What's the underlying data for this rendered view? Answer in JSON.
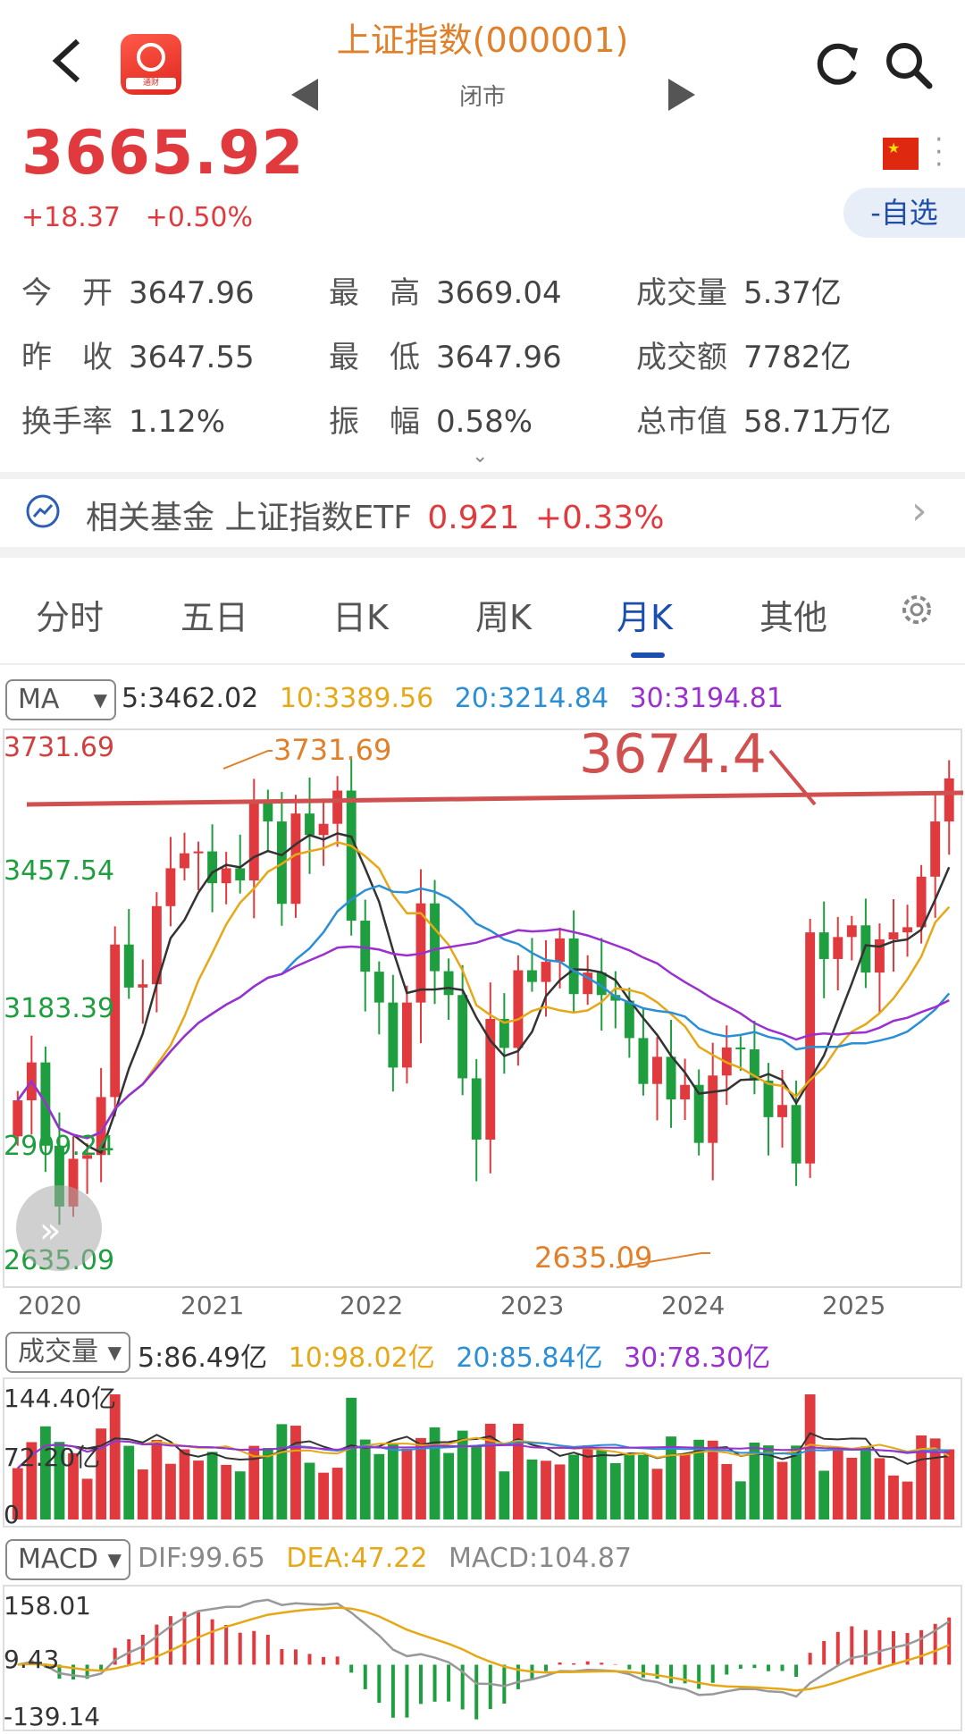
{
  "header": {
    "back": "‹",
    "title": "上证指数(000001)",
    "status": "闭市",
    "logo_text": "通财"
  },
  "quote": {
    "price": "3665.92",
    "change": "+18.37",
    "change_pct": "+0.50%",
    "watch_button": "-自选",
    "stats": [
      {
        "label": "今　开",
        "value": "3647.96"
      },
      {
        "label": "最　高",
        "value": "3669.04"
      },
      {
        "label": "成交量",
        "value": "5.37亿"
      },
      {
        "label": "昨　收",
        "value": "3647.55"
      },
      {
        "label": "最　低",
        "value": "3647.96"
      },
      {
        "label": "成交额",
        "value": "7782亿"
      },
      {
        "label": "换手率",
        "value": "1.12%"
      },
      {
        "label": "振　幅",
        "value": "0.58%"
      },
      {
        "label": "总市值",
        "value": "58.71万亿"
      }
    ]
  },
  "fund": {
    "label": "相关基金",
    "name": "上证指数ETF",
    "price": "0.921",
    "change": "+0.33%"
  },
  "tabs": [
    "分时",
    "五日",
    "日K",
    "周K",
    "月K",
    "其他"
  ],
  "active_tab": "月K",
  "ma_bar": {
    "selector": "MA",
    "ma5": "5:3462.02",
    "ma10": "10:3389.56",
    "ma20": "20:3214.84",
    "ma30": "30:3194.81"
  },
  "volume_bar": {
    "selector": "成交量",
    "ma5": "5:86.49亿",
    "ma10": "10:98.02亿",
    "ma20": "20:85.84亿",
    "ma30": "30:78.30亿"
  },
  "macd_bar": {
    "selector": "MACD",
    "dif": "DIF:99.65",
    "dea": "DEA:47.22",
    "macd": "MACD:104.87"
  },
  "colors": {
    "up": "#e03a3e",
    "down": "#1e9e3e",
    "ma5": "#333333",
    "ma10": "#e6a817",
    "ma20": "#2b8fd6",
    "ma30": "#9b2fcf",
    "annotation": "#d05050"
  },
  "chart_data": [
    {
      "type": "candlestick",
      "title": "",
      "y_ticks": [
        "3731.69",
        "3457.54",
        "3183.39",
        "2909.24",
        "2635.09"
      ],
      "ylim": [
        2635.09,
        3731.69
      ],
      "x_ticks": [
        "2020",
        "2021",
        "2022",
        "2023",
        "2024",
        "2025"
      ],
      "annotations": {
        "high": "3731.69",
        "low": "2635.09",
        "resistance": "3674.4"
      },
      "series": [
        {
          "name": "MA5",
          "values": []
        },
        {
          "name": "MA10",
          "values": []
        },
        {
          "name": "MA20",
          "values": []
        },
        {
          "name": "MA30",
          "values": []
        }
      ],
      "closes": [
        2977,
        3058,
        2880,
        2750,
        2852,
        2860,
        2984,
        3310,
        3218,
        3225,
        3392,
        3473,
        3505,
        3509,
        3441,
        3473,
        3447,
        3615,
        3573,
        3397,
        3590,
        3544,
        3568,
        3639,
        3361,
        3252,
        3186,
        3047,
        3186,
        3398,
        3253,
        3202,
        3024,
        2893,
        3151,
        3089,
        3255,
        3230,
        3273,
        3323,
        3204,
        3250,
        3202,
        3190,
        3110,
        3012,
        3070,
        2979,
        3010,
        2886,
        3030,
        3090,
        3086,
        3019,
        2941,
        2967,
        2842,
        3336,
        3279,
        3326,
        3351,
        3250,
        3321,
        3336,
        3347,
        3455,
        3573,
        3665
      ]
    },
    {
      "type": "bar",
      "title": "",
      "y_ticks": [
        "144.40亿",
        "72.20亿",
        "0"
      ],
      "ylim": [
        0,
        144.4
      ]
    },
    {
      "type": "bar",
      "title": "",
      "y_ticks": [
        "158.01",
        "9.43",
        "-139.14"
      ],
      "ylim": [
        -139.14,
        158.01
      ]
    }
  ]
}
